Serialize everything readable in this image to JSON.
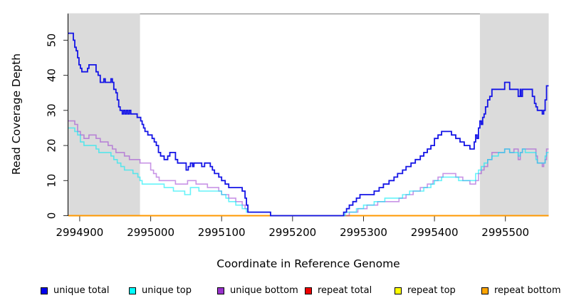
{
  "figure": {
    "xlabel": "Coordinate in Reference Genome",
    "ylabel": "Read Coverage Depth"
  },
  "legend": {
    "items": [
      {
        "label": "unique total",
        "color": "#0000EE"
      },
      {
        "label": "unique top",
        "color": "#00FFFF"
      },
      {
        "label": "unique bottom",
        "color": "#9932CC"
      },
      {
        "label": "repeat total",
        "color": "#EE0000"
      },
      {
        "label": "repeat top",
        "color": "#FFFF00"
      },
      {
        "label": "repeat bottom",
        "color": "#FFA500"
      }
    ]
  },
  "chart_data": {
    "type": "line",
    "subtype": "step-coverage",
    "title": "",
    "xlabel": "Coordinate in Reference Genome",
    "ylabel": "Read Coverage Depth",
    "x_range": [
      2994884,
      2995561
    ],
    "y_max": 57.6,
    "x_ticks": [
      2994900,
      2995000,
      2995100,
      2995200,
      2995300,
      2995400,
      2995500
    ],
    "y_ticks": [
      0,
      10,
      20,
      30,
      40,
      50
    ],
    "grid": false,
    "legend_position": "bottom",
    "shade_color": "#DBDBDB",
    "frame_color": "#8F8F8F",
    "axis_color": "#000000",
    "tick_color": "#303030",
    "shaded_regions": [
      [
        2994884,
        2994985
      ],
      [
        2995464,
        2995561
      ]
    ],
    "series": [
      {
        "name": "repeat-total",
        "label": "repeat total",
        "color": "#EE0000",
        "width": 1.5,
        "points": [
          [
            2994884,
            0
          ]
        ]
      },
      {
        "name": "repeat-top",
        "label": "repeat top",
        "color": "#FFFF00",
        "width": 1.5,
        "points": [
          [
            2994884,
            0
          ]
        ]
      },
      {
        "name": "repeat-bottom",
        "label": "repeat bottom",
        "color": "#FF9800",
        "width": 2,
        "points": [
          [
            2994884,
            0
          ]
        ]
      },
      {
        "name": "unique-bottom",
        "label": "unique bottom",
        "color": "rgba(154,60,210,0.55)",
        "width": 1.6,
        "points": [
          [
            2994884,
            27
          ],
          [
            2994893,
            26
          ],
          [
            2994897,
            24
          ],
          [
            2994901,
            23
          ],
          [
            2994906,
            22
          ],
          [
            2994913,
            23
          ],
          [
            2994923,
            22
          ],
          [
            2994929,
            21
          ],
          [
            2994940,
            20
          ],
          [
            2994946,
            19
          ],
          [
            2994951,
            18
          ],
          [
            2994957,
            18
          ],
          [
            2994963,
            17
          ],
          [
            2994970,
            16
          ],
          [
            2994985,
            15
          ],
          [
            2995000,
            13
          ],
          [
            2995004,
            12
          ],
          [
            2995008,
            11
          ],
          [
            2995012,
            10
          ],
          [
            2995035,
            9
          ],
          [
            2995052,
            10
          ],
          [
            2995064,
            9
          ],
          [
            2995080,
            8
          ],
          [
            2995096,
            7
          ],
          [
            2995100,
            6
          ],
          [
            2995110,
            5
          ],
          [
            2995120,
            4
          ],
          [
            2995129,
            3
          ],
          [
            2995133,
            2
          ],
          [
            2995137,
            1
          ],
          [
            2995169,
            0
          ],
          [
            2995280,
            1
          ],
          [
            2995292,
            2
          ],
          [
            2995305,
            3
          ],
          [
            2995320,
            4
          ],
          [
            2995350,
            5
          ],
          [
            2995360,
            6
          ],
          [
            2995370,
            7
          ],
          [
            2995380,
            8
          ],
          [
            2995390,
            9
          ],
          [
            2995398,
            10
          ],
          [
            2995405,
            11
          ],
          [
            2995412,
            12
          ],
          [
            2995430,
            11
          ],
          [
            2995440,
            10
          ],
          [
            2995450,
            9
          ],
          [
            2995458,
            10
          ],
          [
            2995462,
            12
          ],
          [
            2995466,
            13
          ],
          [
            2995470,
            14
          ],
          [
            2995475,
            16
          ],
          [
            2995481,
            18
          ],
          [
            2995499,
            19
          ],
          [
            2995506,
            18
          ],
          [
            2995512,
            19
          ],
          [
            2995518,
            16
          ],
          [
            2995521,
            18
          ],
          [
            2995524,
            19
          ],
          [
            2995543,
            17
          ],
          [
            2995545,
            15
          ],
          [
            2995552,
            14
          ],
          [
            2995554,
            15
          ],
          [
            2995556,
            16
          ],
          [
            2995558,
            19
          ]
        ]
      },
      {
        "name": "unique-top",
        "label": "unique top",
        "color": "rgba(0,235,245,0.60)",
        "width": 1.6,
        "points": [
          [
            2994884,
            25
          ],
          [
            2994893,
            24
          ],
          [
            2994897,
            23
          ],
          [
            2994901,
            21
          ],
          [
            2994906,
            20
          ],
          [
            2994923,
            19
          ],
          [
            2994927,
            18
          ],
          [
            2994944,
            17
          ],
          [
            2994948,
            16
          ],
          [
            2994953,
            15
          ],
          [
            2994958,
            14
          ],
          [
            2994963,
            13
          ],
          [
            2994975,
            12
          ],
          [
            2994982,
            11
          ],
          [
            2994985,
            10
          ],
          [
            2994988,
            9
          ],
          [
            2995019,
            8
          ],
          [
            2995032,
            7
          ],
          [
            2995048,
            6
          ],
          [
            2995056,
            8
          ],
          [
            2995068,
            7
          ],
          [
            2995100,
            6
          ],
          [
            2995106,
            5
          ],
          [
            2995110,
            4
          ],
          [
            2995120,
            3
          ],
          [
            2995129,
            2
          ],
          [
            2995135,
            1
          ],
          [
            2995169,
            0
          ],
          [
            2995274,
            1
          ],
          [
            2995290,
            2
          ],
          [
            2995300,
            3
          ],
          [
            2995315,
            4
          ],
          [
            2995330,
            5
          ],
          [
            2995355,
            6
          ],
          [
            2995365,
            7
          ],
          [
            2995385,
            8
          ],
          [
            2995395,
            9
          ],
          [
            2995400,
            10
          ],
          [
            2995410,
            11
          ],
          [
            2995434,
            10
          ],
          [
            2995458,
            12
          ],
          [
            2995462,
            13
          ],
          [
            2995466,
            14
          ],
          [
            2995470,
            15
          ],
          [
            2995475,
            16
          ],
          [
            2995481,
            17
          ],
          [
            2995490,
            18
          ],
          [
            2995499,
            19
          ],
          [
            2995506,
            18
          ],
          [
            2995518,
            17
          ],
          [
            2995521,
            18
          ],
          [
            2995524,
            19
          ],
          [
            2995528,
            18
          ],
          [
            2995543,
            16
          ],
          [
            2995545,
            15
          ],
          [
            2995556,
            17
          ],
          [
            2995558,
            18
          ]
        ]
      },
      {
        "name": "unique-total",
        "label": "unique total",
        "color": "#1414E6",
        "width": 1.8,
        "points": [
          [
            2994884,
            52
          ],
          [
            2994891,
            50
          ],
          [
            2994893,
            48
          ],
          [
            2994895,
            47
          ],
          [
            2994897,
            45
          ],
          [
            2994899,
            43
          ],
          [
            2994901,
            42
          ],
          [
            2994903,
            41
          ],
          [
            2994911,
            42
          ],
          [
            2994913,
            43
          ],
          [
            2994923,
            41
          ],
          [
            2994926,
            40
          ],
          [
            2994929,
            38
          ],
          [
            2994934,
            39
          ],
          [
            2994936,
            38
          ],
          [
            2994944,
            39
          ],
          [
            2994946,
            38
          ],
          [
            2994948,
            36
          ],
          [
            2994951,
            35
          ],
          [
            2994953,
            33
          ],
          [
            2994955,
            31
          ],
          [
            2994957,
            30
          ],
          [
            2994960,
            29
          ],
          [
            2994962,
            30
          ],
          [
            2994964,
            29
          ],
          [
            2994966,
            30
          ],
          [
            2994968,
            29
          ],
          [
            2994970,
            30
          ],
          [
            2994972,
            29
          ],
          [
            2994981,
            28
          ],
          [
            2994986,
            27
          ],
          [
            2994988,
            26
          ],
          [
            2994990,
            25
          ],
          [
            2994992,
            24
          ],
          [
            2994996,
            23
          ],
          [
            2995002,
            22
          ],
          [
            2995005,
            21
          ],
          [
            2995008,
            20
          ],
          [
            2995011,
            18
          ],
          [
            2995014,
            17
          ],
          [
            2995019,
            16
          ],
          [
            2995024,
            17
          ],
          [
            2995027,
            18
          ],
          [
            2995035,
            16
          ],
          [
            2995038,
            15
          ],
          [
            2995050,
            13
          ],
          [
            2995053,
            14
          ],
          [
            2995056,
            15
          ],
          [
            2995059,
            14
          ],
          [
            2995061,
            15
          ],
          [
            2995072,
            14
          ],
          [
            2995076,
            15
          ],
          [
            2995084,
            14
          ],
          [
            2995087,
            13
          ],
          [
            2995090,
            12
          ],
          [
            2995096,
            11
          ],
          [
            2995100,
            10
          ],
          [
            2995105,
            9
          ],
          [
            2995110,
            8
          ],
          [
            2995129,
            7
          ],
          [
            2995133,
            5
          ],
          [
            2995135,
            3
          ],
          [
            2995137,
            1
          ],
          [
            2995169,
            0
          ],
          [
            2995272,
            1
          ],
          [
            2995276,
            2
          ],
          [
            2995280,
            3
          ],
          [
            2995285,
            4
          ],
          [
            2995290,
            5
          ],
          [
            2995295,
            6
          ],
          [
            2995315,
            7
          ],
          [
            2995322,
            8
          ],
          [
            2995328,
            9
          ],
          [
            2995336,
            10
          ],
          [
            2995343,
            11
          ],
          [
            2995348,
            12
          ],
          [
            2995355,
            13
          ],
          [
            2995360,
            14
          ],
          [
            2995367,
            15
          ],
          [
            2995373,
            16
          ],
          [
            2995380,
            17
          ],
          [
            2995385,
            18
          ],
          [
            2995390,
            19
          ],
          [
            2995395,
            20
          ],
          [
            2995400,
            22
          ],
          [
            2995405,
            23
          ],
          [
            2995410,
            24
          ],
          [
            2995424,
            23
          ],
          [
            2995430,
            22
          ],
          [
            2995436,
            21
          ],
          [
            2995442,
            20
          ],
          [
            2995450,
            19
          ],
          [
            2995456,
            21
          ],
          [
            2995458,
            23
          ],
          [
            2995460,
            22
          ],
          [
            2995462,
            25
          ],
          [
            2995464,
            27
          ],
          [
            2995466,
            26
          ],
          [
            2995468,
            28
          ],
          [
            2995470,
            29
          ],
          [
            2995472,
            31
          ],
          [
            2995475,
            33
          ],
          [
            2995478,
            34
          ],
          [
            2995481,
            36
          ],
          [
            2995499,
            38
          ],
          [
            2995506,
            36
          ],
          [
            2995518,
            34
          ],
          [
            2995521,
            36
          ],
          [
            2995522,
            34
          ],
          [
            2995524,
            36
          ],
          [
            2995538,
            34
          ],
          [
            2995541,
            32
          ],
          [
            2995543,
            31
          ],
          [
            2995545,
            30
          ],
          [
            2995552,
            29
          ],
          [
            2995554,
            30
          ],
          [
            2995556,
            33
          ],
          [
            2995558,
            37
          ]
        ]
      }
    ]
  }
}
